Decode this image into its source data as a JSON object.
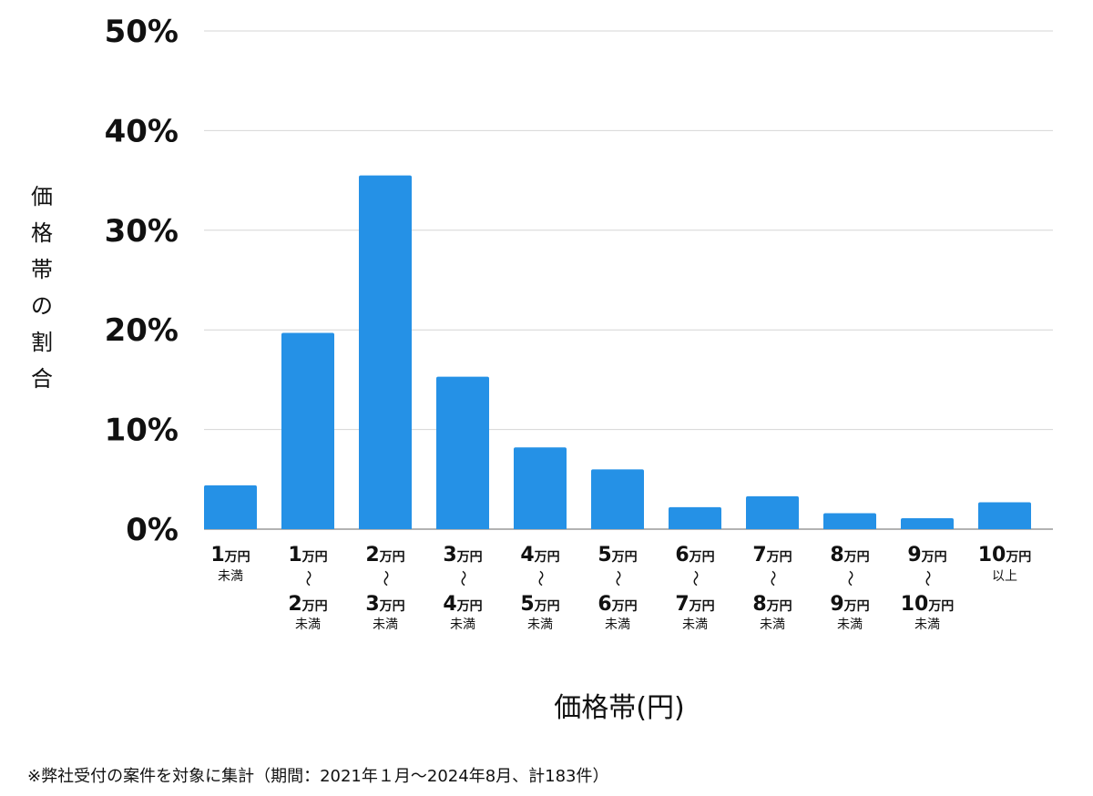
{
  "chart_data": {
    "type": "bar",
    "ylabel": "価格帯の割合",
    "xlabel": "価格帯(円)",
    "ylim": [
      0,
      50
    ],
    "y_ticks": [
      "0%",
      "10%",
      "20%",
      "30%",
      "40%",
      "50%"
    ],
    "grid": true,
    "categories": [
      {
        "top": "1",
        "top_unit": "万円",
        "tilde": "",
        "bottom": "",
        "bottom_unit": "",
        "sub": "未満"
      },
      {
        "top": "1",
        "top_unit": "万円",
        "tilde": "～",
        "bottom": "2",
        "bottom_unit": "万円",
        "sub": "未満"
      },
      {
        "top": "2",
        "top_unit": "万円",
        "tilde": "～",
        "bottom": "3",
        "bottom_unit": "万円",
        "sub": "未満"
      },
      {
        "top": "3",
        "top_unit": "万円",
        "tilde": "～",
        "bottom": "4",
        "bottom_unit": "万円",
        "sub": "未満"
      },
      {
        "top": "4",
        "top_unit": "万円",
        "tilde": "～",
        "bottom": "5",
        "bottom_unit": "万円",
        "sub": "未満"
      },
      {
        "top": "5",
        "top_unit": "万円",
        "tilde": "～",
        "bottom": "6",
        "bottom_unit": "万円",
        "sub": "未満"
      },
      {
        "top": "6",
        "top_unit": "万円",
        "tilde": "～",
        "bottom": "7",
        "bottom_unit": "万円",
        "sub": "未満"
      },
      {
        "top": "7",
        "top_unit": "万円",
        "tilde": "～",
        "bottom": "8",
        "bottom_unit": "万円",
        "sub": "未満"
      },
      {
        "top": "8",
        "top_unit": "万円",
        "tilde": "～",
        "bottom": "9",
        "bottom_unit": "万円",
        "sub": "未満"
      },
      {
        "top": "9",
        "top_unit": "万円",
        "tilde": "～",
        "bottom": "10",
        "bottom_unit": "万円",
        "sub": "未満"
      },
      {
        "top": "10",
        "top_unit": "万円",
        "tilde": "",
        "bottom": "",
        "bottom_unit": "",
        "sub": "以上"
      }
    ],
    "values": [
      4.4,
      19.7,
      35.5,
      15.3,
      8.2,
      6.0,
      2.2,
      3.3,
      1.6,
      1.1,
      2.7
    ],
    "bar_color": "#2591e6"
  },
  "footnote": "※弊社受付の案件を対象に集計（期間：2021年１月～2024年8月、計183件）"
}
